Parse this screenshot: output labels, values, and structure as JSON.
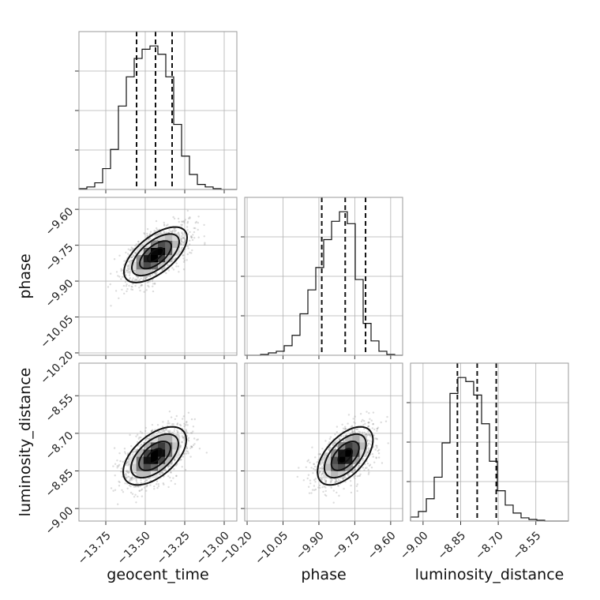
{
  "chart_data": {
    "type": "corner",
    "parameters": [
      "geocent_time",
      "phase",
      "luminosity_distance"
    ],
    "axes": {
      "geocent_time": {
        "label": "geocent_time",
        "lim": [
          -13.92,
          -12.92
        ],
        "ticks": [
          -13.75,
          -13.5,
          -13.25,
          -13.0
        ],
        "tick_labels": [
          "−13.75",
          "−13.50",
          "−13.25",
          "−13.00"
        ]
      },
      "phase": {
        "label": "phase",
        "lim": [
          -10.21,
          -9.55
        ],
        "ticks": [
          -10.2,
          -10.05,
          -9.9,
          -9.75,
          -9.6
        ],
        "tick_labels": [
          "−10.20",
          "−10.05",
          "−9.90",
          "−9.75",
          "−9.60"
        ]
      },
      "luminosity_distance": {
        "label": "luminosity_distance",
        "lim": [
          -9.05,
          -8.42
        ],
        "ticks": [
          -9.0,
          -8.85,
          -8.7,
          -8.55
        ],
        "tick_labels": [
          "−9.00",
          "−8.85",
          "−8.70",
          "−8.55"
        ]
      }
    },
    "marginals": [
      {
        "param": "geocent_time",
        "bin_edges": [
          -13.92,
          -13.87,
          -13.82,
          -13.77,
          -13.72,
          -13.67,
          -13.62,
          -13.57,
          -13.52,
          -13.47,
          -13.42,
          -13.37,
          -13.32,
          -13.27,
          -13.22,
          -13.17,
          -13.12,
          -13.07,
          -13.02,
          -12.97,
          -12.92
        ],
        "counts": [
          1,
          3,
          8,
          25,
          48,
          100,
          135,
          157,
          168,
          172,
          162,
          135,
          78,
          40,
          18,
          6,
          3,
          1,
          0,
          0
        ],
        "quantiles": [
          -13.555,
          -13.435,
          -13.33
        ]
      },
      {
        "param": "phase",
        "bin_edges": [
          -10.21,
          -10.177,
          -10.144,
          -10.111,
          -10.078,
          -10.045,
          -10.012,
          -9.979,
          -9.946,
          -9.913,
          -9.88,
          -9.847,
          -9.814,
          -9.781,
          -9.748,
          -9.715,
          -9.682,
          -9.649,
          -9.616,
          -9.583,
          -9.55
        ],
        "counts": [
          0,
          0,
          1,
          3,
          5,
          12,
          25,
          52,
          82,
          110,
          145,
          168,
          180,
          165,
          95,
          40,
          18,
          5,
          1,
          0
        ],
        "quantiles": [
          -9.888,
          -9.79,
          -9.705
        ]
      },
      {
        "param": "luminosity_distance",
        "bin_edges": [
          -9.05,
          -9.0185,
          -8.987,
          -8.9555,
          -8.924,
          -8.8925,
          -8.861,
          -8.8295,
          -8.798,
          -8.7665,
          -8.735,
          -8.7035,
          -8.672,
          -8.6405,
          -8.609,
          -8.5775,
          -8.546,
          -8.5145,
          -8.483,
          -8.4515,
          -8.42
        ],
        "counts": [
          5,
          12,
          28,
          55,
          98,
          160,
          180,
          175,
          158,
          122,
          75,
          38,
          20,
          10,
          4,
          2,
          1,
          0,
          0,
          0
        ],
        "quantiles": [
          -8.863,
          -8.784,
          -8.708
        ]
      }
    ],
    "correlations": [
      {
        "x": "geocent_time",
        "y": "phase",
        "mean": [
          -13.435,
          -9.79
        ],
        "sd": [
          0.1,
          0.058
        ],
        "rho": 0.62
      },
      {
        "x": "geocent_time",
        "y": "luminosity_distance",
        "mean": [
          -13.44,
          -8.79
        ],
        "sd": [
          0.1,
          0.058
        ],
        "rho": 0.55
      },
      {
        "x": "phase",
        "y": "luminosity_distance",
        "mean": [
          -9.79,
          -8.79
        ],
        "sd": [
          0.058,
          0.058
        ],
        "rho": 0.55
      }
    ],
    "contour_levels_sigma": [
      0.5,
      1.0,
      1.5,
      2.0
    ],
    "grid": true,
    "colors": {
      "points": "#9a9a9a",
      "lines": "#111111",
      "frame": "#9a9a9a",
      "grid": "#b0b0b0"
    }
  }
}
